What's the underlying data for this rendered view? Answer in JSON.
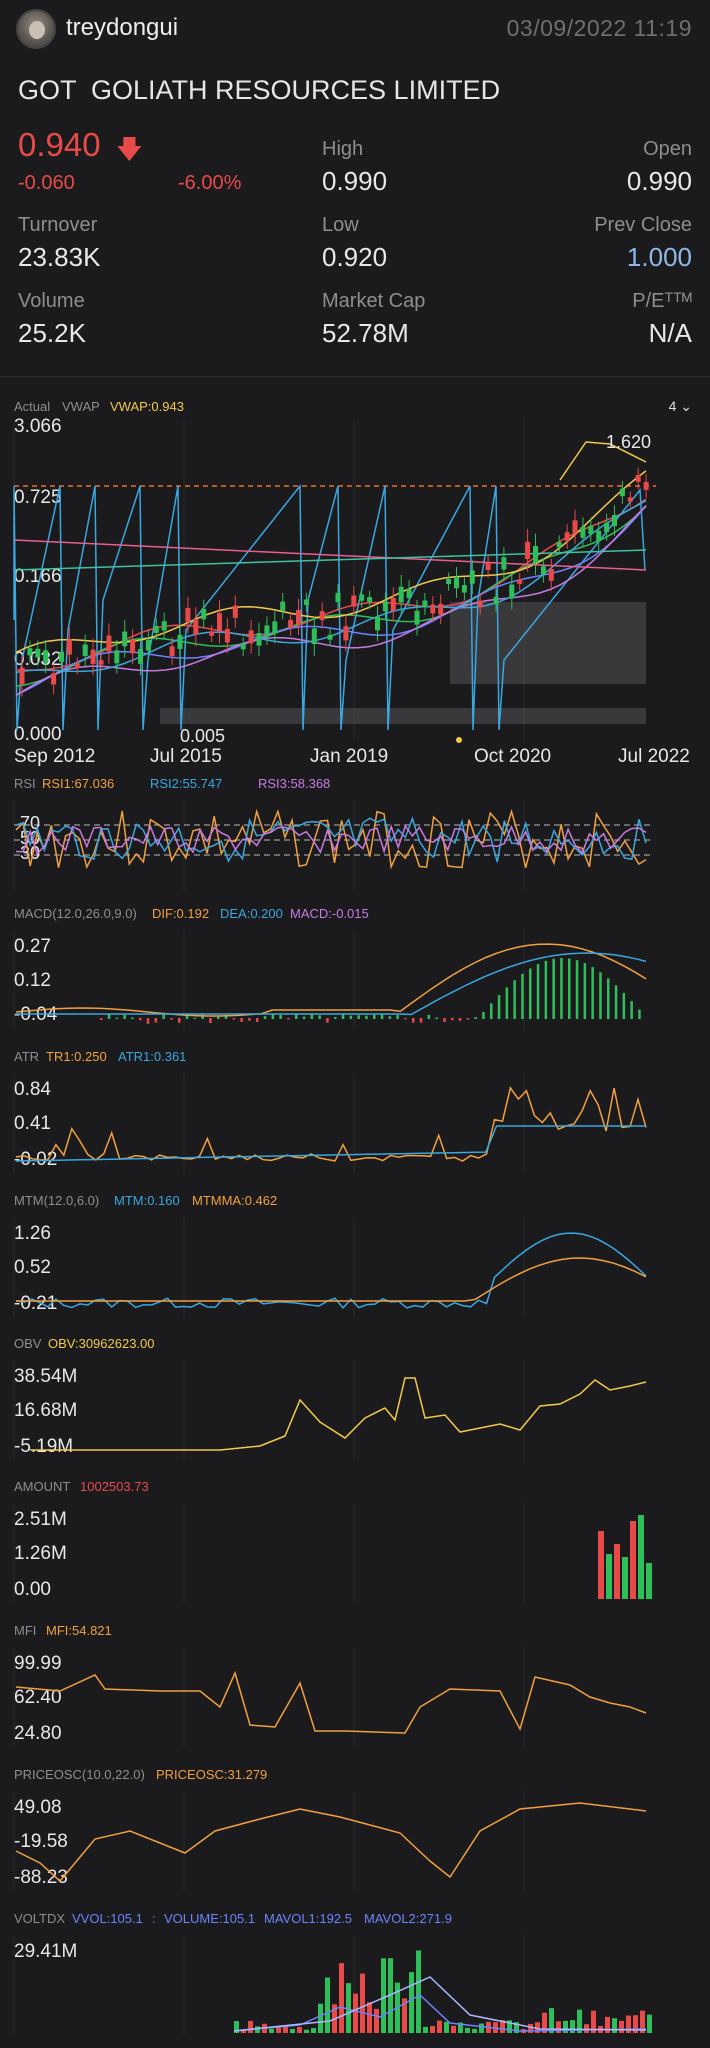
{
  "header": {
    "username": "treydongui",
    "datetime": "03/09/2022  11:19"
  },
  "stock": {
    "title": "GOT  GOLIATH RESOURCES LIMITED",
    "price": "0.940",
    "change": "-0.060",
    "change_pct": "-6.00%",
    "high_label": "High",
    "high": "0.990",
    "open_label": "Open",
    "open": "0.990",
    "turnover_label": "Turnover",
    "turnover": "23.83K",
    "low_label": "Low",
    "low": "0.920",
    "prevclose_label": "Prev Close",
    "prevclose": "1.000",
    "volume_label": "Volume",
    "volume": "25.2K",
    "mktcap_label": "Market Cap",
    "mktcap": "52.78M",
    "pe_label": "P/Eᵀᵀᴹ",
    "pe": "N/A"
  },
  "colors": {
    "down": "#e84a4a",
    "up": "#2fbf5a",
    "orange": "#f0a040",
    "blue": "#3aa7e0",
    "purple": "#c77ae0",
    "yellow": "#f2c94c"
  },
  "main_chart": {
    "legend_actual": "Actual",
    "legend_vwap": "VWAP",
    "legend_vwap_value": "VWAP:0.943",
    "period_selector": "4",
    "y_ticks": [
      "3.066",
      "0.725",
      "0.166",
      "0.032",
      "0.000"
    ],
    "x_ticks": [
      "Sep 2012",
      "Jul 2015",
      "Jan 2019",
      "Oct 2020",
      "Jul 2022"
    ],
    "high_annot": "1.620",
    "low_annot": "0.005"
  },
  "rsi": {
    "name": "RSI",
    "rsi1": "RSI1:67.036",
    "rsi2": "RSI2:55.747",
    "rsi3": "RSI3:58.368",
    "levels": [
      "70",
      "50",
      "30"
    ]
  },
  "macd": {
    "name": "MACD(12.0,26.0,9.0)",
    "dif": "DIF:0.192",
    "dea": "DEA:0.200",
    "macd": "MACD:-0.015",
    "y_ticks": [
      "0.27",
      "0.12",
      "-0.04"
    ]
  },
  "atr": {
    "name": "ATR",
    "tr1": "TR1:0.250",
    "atr1": "ATR1:0.361",
    "y_ticks": [
      "0.84",
      "0.41",
      "-0.02"
    ]
  },
  "mtm": {
    "name": "MTM(12.0,6.0)",
    "mtm": "MTM:0.160",
    "mtmma": "MTMMA:0.462",
    "y_ticks": [
      "1.26",
      "0.52",
      "-0.21"
    ]
  },
  "obv": {
    "name": "OBV",
    "obv": "OBV:30962623.00",
    "y_ticks": [
      "38.54M",
      "16.68M",
      "-5.19M"
    ]
  },
  "amount": {
    "name": "AMOUNT",
    "value": "1002503.73",
    "y_ticks": [
      "2.51M",
      "1.26M",
      "0.00"
    ]
  },
  "mfi": {
    "name": "MFI",
    "mfi": "MFI:54.821",
    "y_ticks": [
      "99.99",
      "62.40",
      "24.80"
    ]
  },
  "priceosc": {
    "name": "PRICEOSC(10.0,22.0)",
    "value": "PRICEOSC:31.279",
    "y_ticks": [
      "49.08",
      "-19.58",
      "-88.23"
    ]
  },
  "voltdx": {
    "name": "VOLTDX",
    "vvol": "VVOL:105.1",
    "sep": ":",
    "volume": "VOLUME:105.1",
    "mavol1": "MAVOL1:192.5",
    "mavol2": "MAVOL2:271.9",
    "y_ticks": [
      "29.41M"
    ]
  }
}
